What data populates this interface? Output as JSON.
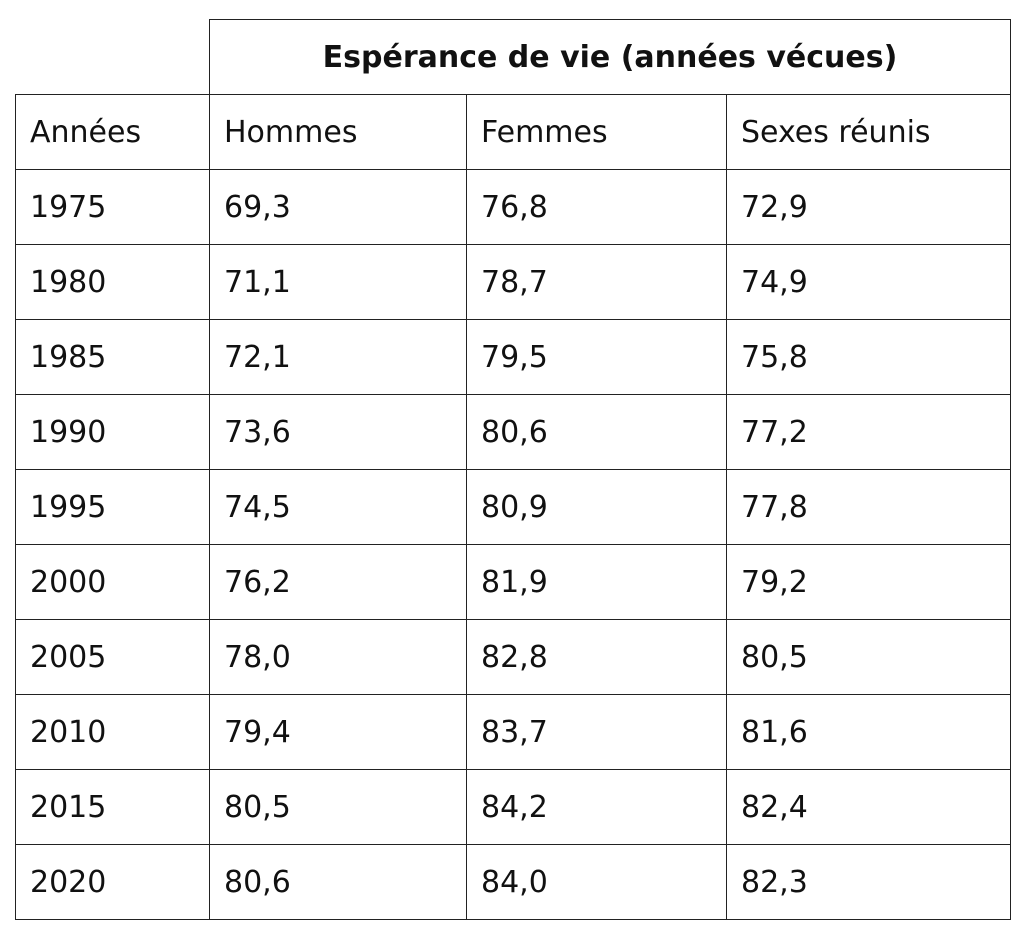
{
  "table": {
    "title": "Espérance de vie (années vécues)",
    "columns": [
      "Années",
      "Hommes",
      "Femmes",
      "Sexes réunis"
    ],
    "rows": [
      [
        "1975",
        "69,3",
        "76,8",
        "72,9"
      ],
      [
        "1980",
        "71,1",
        "78,7",
        "74,9"
      ],
      [
        "1985",
        "72,1",
        "79,5",
        "75,8"
      ],
      [
        "1990",
        "73,6",
        "80,6",
        "77,2"
      ],
      [
        "1995",
        "74,5",
        "80,9",
        "77,8"
      ],
      [
        "2000",
        "76,2",
        "81,9",
        "79,2"
      ],
      [
        "2005",
        "78,0",
        "82,8",
        "80,5"
      ],
      [
        "2010",
        "79,4",
        "83,7",
        "81,6"
      ],
      [
        "2015",
        "80,5",
        "84,2",
        "82,4"
      ],
      [
        "2020",
        "80,6",
        "84,0",
        "82,3"
      ]
    ]
  }
}
